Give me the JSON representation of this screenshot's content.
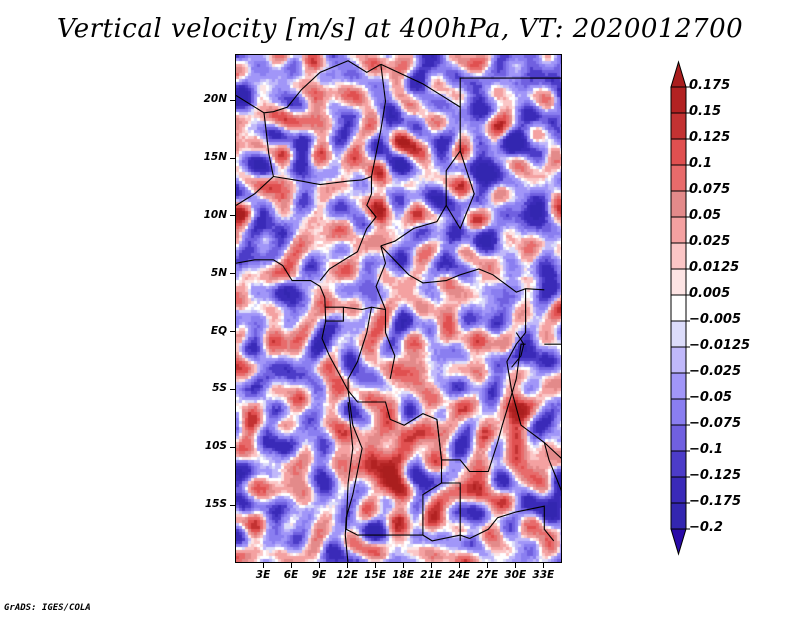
{
  "title": "Vertical velocity [m/s] at 400hPa, VT: 2020012700",
  "footer": "GrADS: IGES/COLA",
  "map": {
    "variable": "Vertical velocity",
    "units": "m/s",
    "level": "400hPa",
    "valid_time": "2020012700",
    "lon_range": [
      0,
      35
    ],
    "lat_range": [
      -20,
      24
    ],
    "lat_ticks": [
      {
        "value": 20,
        "label": "20N"
      },
      {
        "value": 15,
        "label": "15N"
      },
      {
        "value": 10,
        "label": "10N"
      },
      {
        "value": 5,
        "label": "5N"
      },
      {
        "value": 0,
        "label": "EQ"
      },
      {
        "value": -5,
        "label": "5S"
      },
      {
        "value": -10,
        "label": "10S"
      },
      {
        "value": -15,
        "label": "15S"
      }
    ],
    "lon_ticks": [
      {
        "value": 3,
        "label": "3E"
      },
      {
        "value": 6,
        "label": "6E"
      },
      {
        "value": 9,
        "label": "9E"
      },
      {
        "value": 12,
        "label": "12E"
      },
      {
        "value": 15,
        "label": "15E"
      },
      {
        "value": 18,
        "label": "18E"
      },
      {
        "value": 21,
        "label": "21E"
      },
      {
        "value": 24,
        "label": "24E"
      },
      {
        "value": 27,
        "label": "27E"
      },
      {
        "value": 30,
        "label": "30E"
      },
      {
        "value": 33,
        "label": "33E"
      }
    ],
    "field_description": "Shaded vertical velocity field over Central/West Africa; strong positive (red) cells over Angola (~13-18E, 8-14S) and near Lake Tanganyika/Malawi (~28-31E, 6-12S); predominantly negative (blue) over Chad, Sudan and Libya."
  },
  "colorbar": {
    "levels": [
      {
        "label": "0.175",
        "color": "#b22222"
      },
      {
        "label": "0.15",
        "color": "#c33232"
      },
      {
        "label": "0.125",
        "color": "#e05050"
      },
      {
        "label": "0.1",
        "color": "#e86b6b"
      },
      {
        "label": "0.075",
        "color": "#e38a8a"
      },
      {
        "label": "0.05",
        "color": "#f4a1a1"
      },
      {
        "label": "0.025",
        "color": "#fbc6c6"
      },
      {
        "label": "0.0125",
        "color": "#fde4e4"
      },
      {
        "label": "0.005",
        "color": "#ffffff"
      },
      {
        "label": "-0.005",
        "color": "#dcdcfa"
      },
      {
        "label": "-0.0125",
        "color": "#c0b8fa"
      },
      {
        "label": "-0.025",
        "color": "#a196f8"
      },
      {
        "label": "-0.05",
        "color": "#8a7ef0"
      },
      {
        "label": "-0.075",
        "color": "#7060e0"
      },
      {
        "label": "-0.1",
        "color": "#4c3cc8"
      },
      {
        "label": "-0.125",
        "color": "#3a2ab8"
      },
      {
        "label": "-0.175",
        "color": "#2e20a8"
      },
      {
        "label": "-0.2",
        "color": ""
      }
    ],
    "top_arrow_color": "#aa1e1e",
    "bottom_arrow_color": "#2a0aa8",
    "bottom_box_color": "#3326b0"
  }
}
